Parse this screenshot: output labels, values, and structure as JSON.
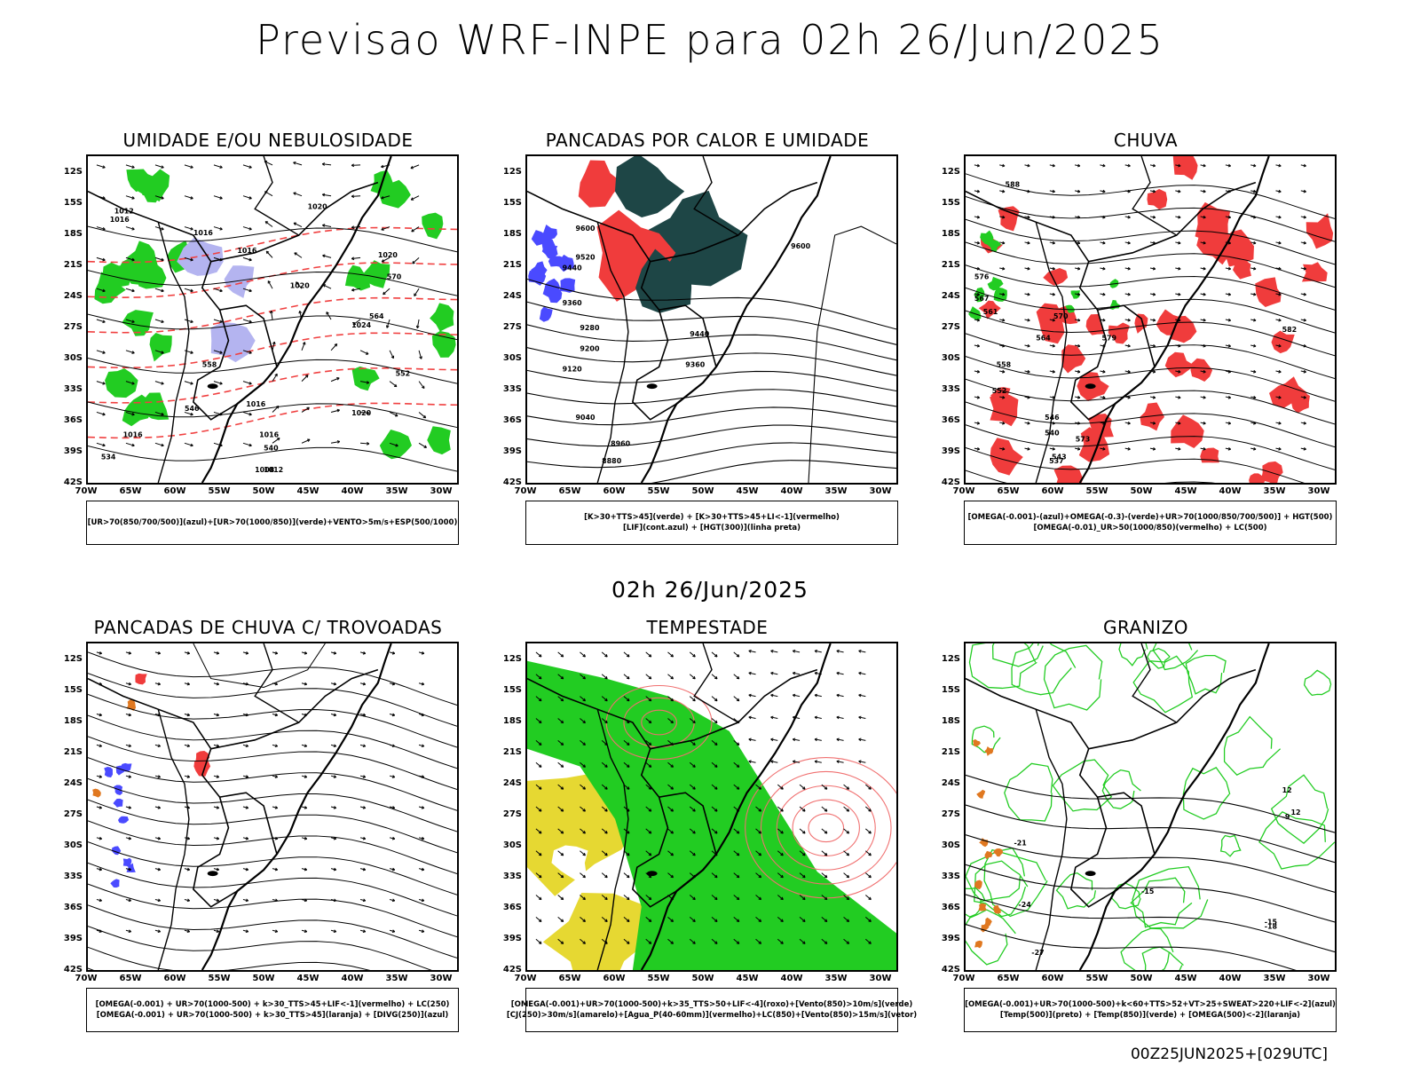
{
  "title": "Previsao WRF-INPE  para 02h 26/Jun/2025",
  "mid_title": "02h 26/Jun/2025",
  "footer": "00Z25JUN2025+[029UTC]",
  "lat_labels": [
    "12S",
    "15S",
    "18S",
    "21S",
    "24S",
    "27S",
    "30S",
    "33S",
    "36S",
    "39S",
    "42S"
  ],
  "lon_labels": [
    "70W",
    "65W",
    "60W",
    "55W",
    "50W",
    "45W",
    "40W",
    "35W",
    "30W"
  ],
  "panels": [
    {
      "title": "UMIDADE E/OU NEBULOSIDADE",
      "legend": [
        "[UR>70(850/700/500)](azul)+[UR>70(1000/850)](verde)+VENTO>5m/s+ESP(500/1000)"
      ]
    },
    {
      "title": "PANCADAS POR CALOR E UMIDADE",
      "legend": [
        "[K>30+TTS>45](verde)  +  [K>30+TTS>45+LI<-1](vermelho)",
        "[LIF](cont.azul)  +  [HGT(300)](linha preta)"
      ]
    },
    {
      "title": "CHUVA",
      "legend": [
        "[OMEGA(-0.001)-(azul)+OMEGA(-0.3)-(verde)+UR>70(1000/850/700/500)]  +  HGT(500)",
        "[OMEGA(-0.01)_UR>50(1000/850)(vermelho)  +  LC(500)"
      ]
    },
    {
      "title": "PANCADAS DE CHUVA C/ TROVOADAS",
      "legend": [
        "[OMEGA(-0.001)  +  UR>70(1000-500)  +  k>30_TTS>45+LIF<-1](vermelho)  +  LC(250)",
        "[OMEGA(-0.001)  +  UR>70(1000-500)  +  k>30_TTS>45](laranja)  +  [DIVG(250)](azul)"
      ]
    },
    {
      "title": "TEMPESTADE",
      "legend": [
        "[OMEGA(-0.001)+UR>70(1000-500)+k>35_TTS>50+LIF<-4](roxo)+[Vento(850)>10m/s](verde)",
        "[CJ(250)>30m/s](amarelo)+[Agua_P(40-60mm)](vermelho)+LC(850)+[Vento(850)>15m/s](vetor)"
      ]
    },
    {
      "title": "GRANIZO",
      "legend": [
        "[OMEGA(-0.001)+UR>70(1000-500)+k<60+TTS>52+VT>25+SWEAT>220+LIF<-2](azul)",
        "[Temp(500)](preto)  +  [Temp(850)](verde)  +  [OMEGA(500)<-2](laranja)"
      ]
    }
  ],
  "contour_labels": {
    "p1": [
      "1012",
      "1016",
      "1016",
      "1020",
      "1016",
      "1020",
      "1024",
      "1020",
      "1016",
      "1020",
      "1016",
      "1016",
      "1012",
      "1008",
      "570",
      "564",
      "558",
      "552",
      "546",
      "540",
      "534"
    ],
    "p2": [
      "9600",
      "9520",
      "9440",
      "9360",
      "9280",
      "9200",
      "9120",
      "9040",
      "8960",
      "8880",
      "9600",
      "9440",
      "9360"
    ],
    "p3": [
      "588",
      "582",
      "576",
      "570",
      "564",
      "558",
      "552",
      "546",
      "540",
      "537",
      "543",
      "573",
      "579",
      "567",
      "561"
    ],
    "p6": [
      "-21",
      "-24",
      "-27",
      "-15",
      "-18",
      "-15",
      "12",
      "12",
      "-9"
    ]
  },
  "colors": {
    "blue": "#4a4aff",
    "light_blue": "#b4b4f0",
    "green": "#22cc22",
    "red": "#f03c3c",
    "dark_teal": "#1e4646",
    "yellow": "#e6d832",
    "orange": "#e07820",
    "pink": "#f07070"
  }
}
